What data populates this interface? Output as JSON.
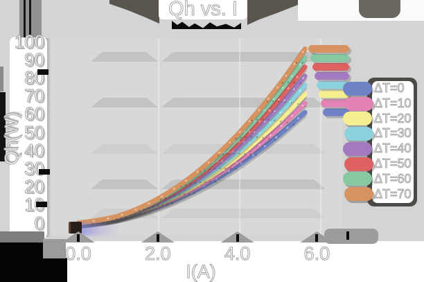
{
  "title": "Qh vs. I",
  "y_axis": {
    "label": "Qh(W)",
    "ticks": [
      "100",
      "90",
      "80",
      "70",
      "60",
      "50",
      "40",
      "30",
      "20",
      "10",
      "0"
    ]
  },
  "x_axis": {
    "label": "I(A)",
    "ticks": [
      "0.0",
      "2.0",
      "4.0",
      "6.0"
    ]
  },
  "legend": {
    "items": [
      {
        "label": "ΔT=0",
        "color": "#7082C6"
      },
      {
        "label": "ΔT=10",
        "color": "#E283B4"
      },
      {
        "label": "ΔT=20",
        "color": "#F5EF92"
      },
      {
        "label": "ΔT=30",
        "color": "#8CD2DE"
      },
      {
        "label": "ΔT=40",
        "color": "#A379BF"
      },
      {
        "label": "ΔT=50",
        "color": "#DE6262"
      },
      {
        "label": "ΔT=60",
        "color": "#87C8A2"
      },
      {
        "label": "ΔT=70",
        "color": "#D6925F"
      }
    ]
  },
  "chart_data": {
    "type": "line",
    "title": "Qh vs. I",
    "xlabel": "I(A)",
    "ylabel": "Qh(W)",
    "xlim": [
      0,
      6.6
    ],
    "ylim": [
      0,
      100
    ],
    "x_ticks": [
      0.0,
      2.0,
      4.0,
      6.0
    ],
    "y_ticks": [
      0,
      10,
      20,
      30,
      40,
      50,
      60,
      70,
      80,
      90,
      100
    ],
    "legend_position": "right",
    "grid_bands": [
      {
        "value": 91.5,
        "shade": "dark"
      },
      {
        "value": 66.5,
        "shade": "dark"
      },
      {
        "value": 41.0,
        "shade": "light"
      },
      {
        "value": 21.5,
        "shade": "dark"
      },
      {
        "value": 5.5,
        "shade": "light"
      }
    ],
    "x": [
      0,
      1,
      2,
      3,
      4,
      5,
      5.7
    ],
    "series": [
      {
        "name": "ΔT=0",
        "color": "#7082C6",
        "values": [
          0,
          2.9,
          9.1,
          18.6,
          31.5,
          47.7,
          61
        ]
      },
      {
        "name": "ΔT=10",
        "color": "#E283B4",
        "values": [
          0,
          3.0,
          9.7,
          20.0,
          33.9,
          51.5,
          66
        ]
      },
      {
        "name": "ΔT=20",
        "color": "#F5EF92",
        "values": [
          0,
          3.2,
          10.3,
          21.4,
          36.4,
          55.4,
          71
        ]
      },
      {
        "name": "ΔT=30",
        "color": "#8CD2DE",
        "values": [
          0,
          3.3,
          10.9,
          22.8,
          38.9,
          59.2,
          76
        ]
      },
      {
        "name": "ΔT=40",
        "color": "#A379BF",
        "values": [
          0,
          3.5,
          11.5,
          24.1,
          41.3,
          63.1,
          81
        ]
      },
      {
        "name": "ΔT=50",
        "color": "#DE6262",
        "values": [
          0,
          3.6,
          12.1,
          25.5,
          43.8,
          66.9,
          86
        ]
      },
      {
        "name": "ΔT=60",
        "color": "#87C8A2",
        "values": [
          0,
          3.8,
          12.8,
          26.9,
          46.3,
          70.8,
          91
        ]
      },
      {
        "name": "ΔT=70",
        "color": "#D6925F",
        "values": [
          0,
          3.9,
          13.4,
          28.3,
          48.7,
          74.6,
          96
        ]
      }
    ]
  }
}
